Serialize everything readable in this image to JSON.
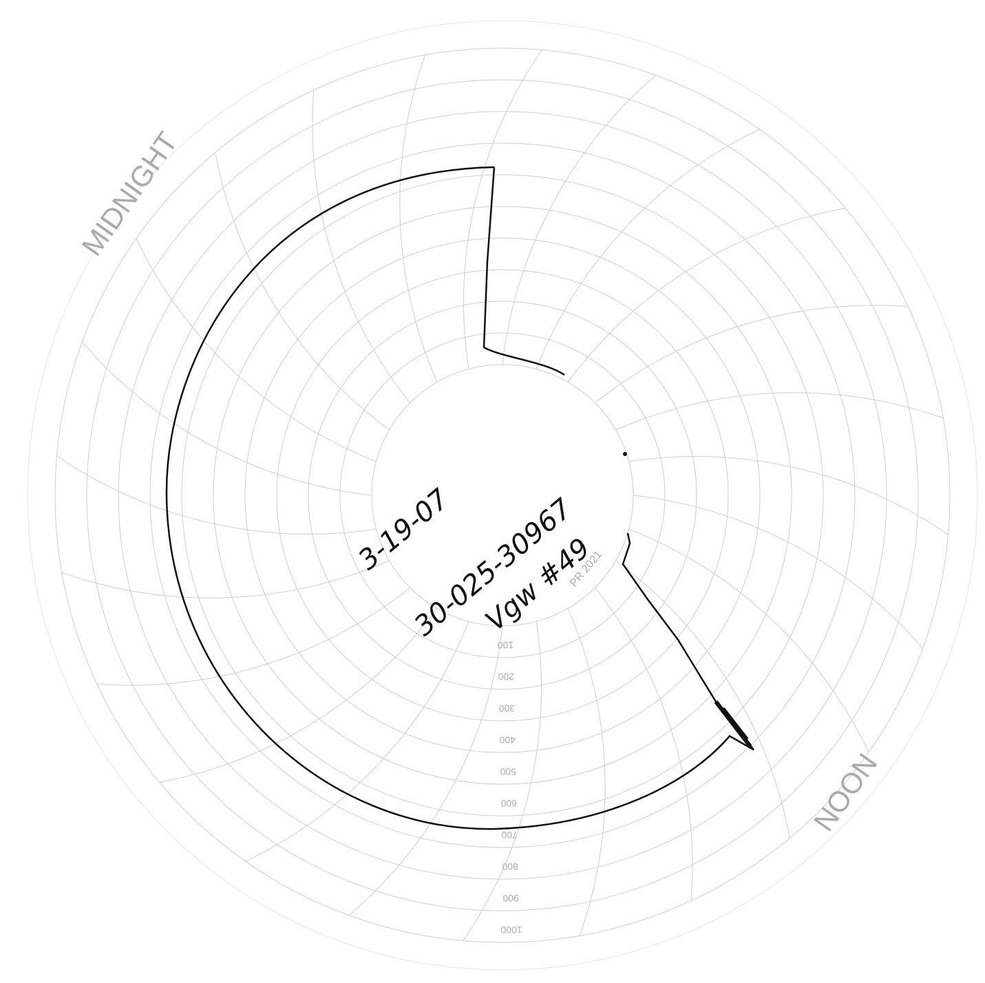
{
  "chart_paper": {
    "midnight_label": "MIDNIGHT",
    "noon_label": "NOON",
    "chart_code": "PR 2021",
    "ring_labels": [
      "100",
      "200",
      "300",
      "400",
      "500",
      "600",
      "700",
      "800",
      "900",
      "1000"
    ]
  },
  "handwriting": {
    "date": "3-19-07",
    "well_id": "30-025-30967",
    "well_name": "Vgw #49"
  }
}
